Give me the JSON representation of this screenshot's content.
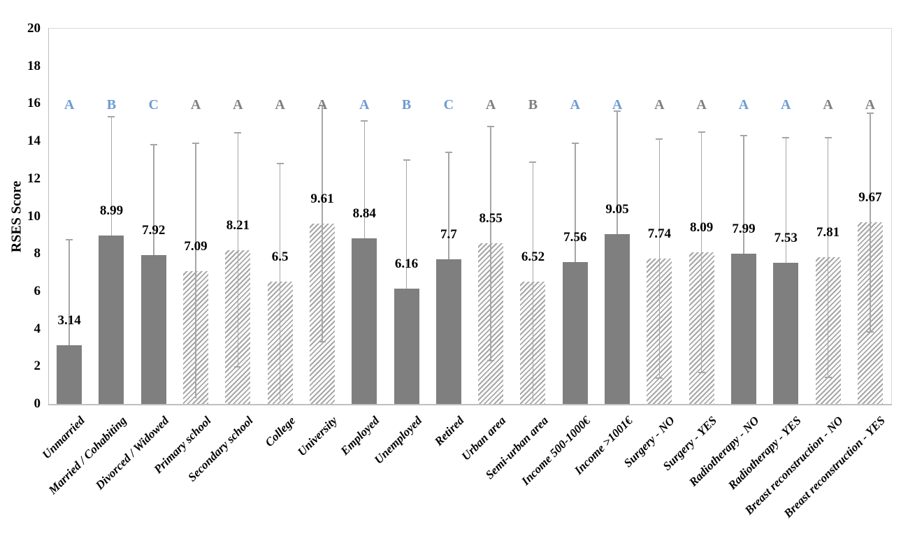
{
  "chart_data": {
    "type": "bar",
    "title": "",
    "xlabel": "",
    "ylabel": "RSES Score",
    "ylim": [
      0,
      20
    ],
    "yticks": [
      0,
      2,
      4,
      6,
      8,
      10,
      12,
      14,
      16,
      18,
      20
    ],
    "grid": false,
    "legend": "none",
    "categories": [
      "Unmarried",
      "Married / Cohabiting",
      "Divorced / Widowed",
      "Primary school",
      "Secondary school",
      "College",
      "University",
      "Employed",
      "Unemployed",
      "Retired",
      "Urban area",
      "Semi-urban area",
      "Income 500-1000€",
      "Income >1001€",
      "Surgery - NO",
      "Surgery - YES",
      "Radiotherapy - NO",
      "Radiotherapy - YES",
      "Breast reconstruction - NO",
      "Breast reconstruction - YES"
    ],
    "values": [
      3.14,
      8.99,
      7.92,
      7.09,
      8.21,
      6.5,
      9.61,
      8.84,
      6.16,
      7.7,
      8.55,
      6.52,
      7.56,
      9.05,
      7.74,
      8.09,
      7.99,
      7.53,
      7.81,
      9.67
    ],
    "value_labels": [
      "3.14",
      "8.99",
      "7.92",
      "7.09",
      "8.21",
      "6.5",
      "9.61",
      "8.84",
      "6.16",
      "7.7",
      "8.55",
      "6.52",
      "7.56",
      "9.05",
      "7.74",
      "8.09",
      "7.99",
      "7.53",
      "7.81",
      "9.67"
    ],
    "error_upper": [
      8.75,
      15.3,
      13.8,
      13.9,
      14.45,
      12.8,
      15.9,
      15.1,
      13.0,
      13.4,
      14.8,
      12.9,
      13.9,
      15.6,
      14.1,
      14.5,
      14.3,
      14.2,
      14.2,
      15.5
    ],
    "bar_styles": [
      "solid",
      "solid",
      "solid",
      "hatched",
      "hatched",
      "hatched",
      "hatched",
      "solid",
      "solid",
      "solid",
      "hatched",
      "hatched",
      "solid",
      "solid",
      "hatched",
      "hatched",
      "solid",
      "solid",
      "hatched",
      "hatched"
    ],
    "significance": [
      {
        "letter": "A",
        "color": "blue"
      },
      {
        "letter": "B",
        "color": "blue"
      },
      {
        "letter": "C",
        "color": "blue"
      },
      {
        "letter": "A",
        "color": "gray"
      },
      {
        "letter": "A",
        "color": "gray"
      },
      {
        "letter": "A",
        "color": "gray"
      },
      {
        "letter": "A",
        "color": "gray"
      },
      {
        "letter": "A",
        "color": "blue"
      },
      {
        "letter": "B",
        "color": "blue"
      },
      {
        "letter": "C",
        "color": "blue"
      },
      {
        "letter": "A",
        "color": "gray"
      },
      {
        "letter": "B",
        "color": "gray"
      },
      {
        "letter": "A",
        "color": "blue"
      },
      {
        "letter": "A",
        "color": "blue"
      },
      {
        "letter": "A",
        "color": "gray"
      },
      {
        "letter": "A",
        "color": "gray"
      },
      {
        "letter": "A",
        "color": "blue"
      },
      {
        "letter": "A",
        "color": "blue"
      },
      {
        "letter": "A",
        "color": "gray"
      },
      {
        "letter": "A",
        "color": "gray"
      }
    ],
    "colors": {
      "solid_bar": "#7f7f7f",
      "hatch_stripe": "#a6a6a6",
      "error_bar": "#a6a6a6",
      "letter_blue": "#6f9bd0",
      "letter_gray": "#808080",
      "axis_line": "#bfbfbf",
      "plot_border": "#d9d9d9",
      "value_text": "#000000"
    }
  }
}
